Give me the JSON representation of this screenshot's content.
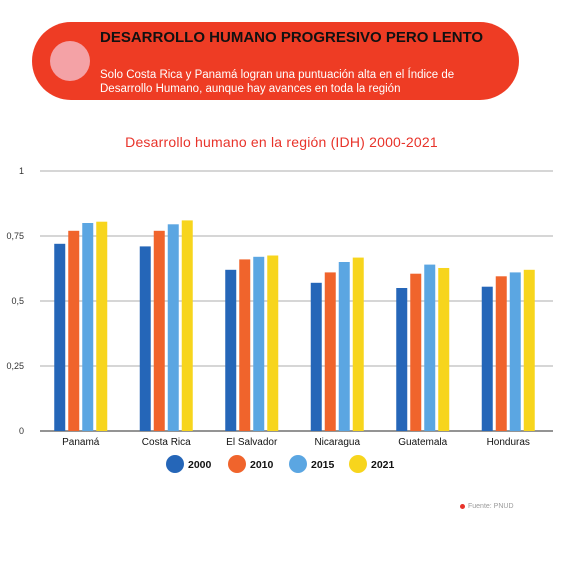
{
  "banner": {
    "title": "DESARROLLO HUMANO PROGRESIVO PERO LENTO",
    "subtitle": "Solo Costa Rica y Panamá logran una puntuación alta en el Índice de Desarrollo Humano, aunque hay avances en toda la región"
  },
  "source": "Fuente: PNUD",
  "chart_data": {
    "type": "bar",
    "title": "Desarrollo humano en la región (IDH) 2000-2021",
    "xlabel": "",
    "ylabel": "",
    "ylim": [
      0,
      1
    ],
    "yticks": [
      "0",
      "0,25",
      "0,5",
      "0,75",
      "1"
    ],
    "categories": [
      "Panamá",
      "Costa Rica",
      "El Salvador",
      "Nicaragua",
      "Guatemala",
      "Honduras"
    ],
    "series": [
      {
        "name": "2000",
        "color": "#2566b8",
        "values": [
          0.72,
          0.71,
          0.62,
          0.57,
          0.55,
          0.555
        ]
      },
      {
        "name": "2010",
        "color": "#f0642c",
        "values": [
          0.77,
          0.77,
          0.66,
          0.61,
          0.605,
          0.595
        ]
      },
      {
        "name": "2015",
        "color": "#5ba6e2",
        "values": [
          0.8,
          0.795,
          0.67,
          0.65,
          0.64,
          0.61
        ]
      },
      {
        "name": "2021",
        "color": "#f7d51d",
        "values": [
          0.805,
          0.81,
          0.675,
          0.667,
          0.627,
          0.62
        ]
      }
    ],
    "grid": true,
    "legend": "bottom"
  }
}
